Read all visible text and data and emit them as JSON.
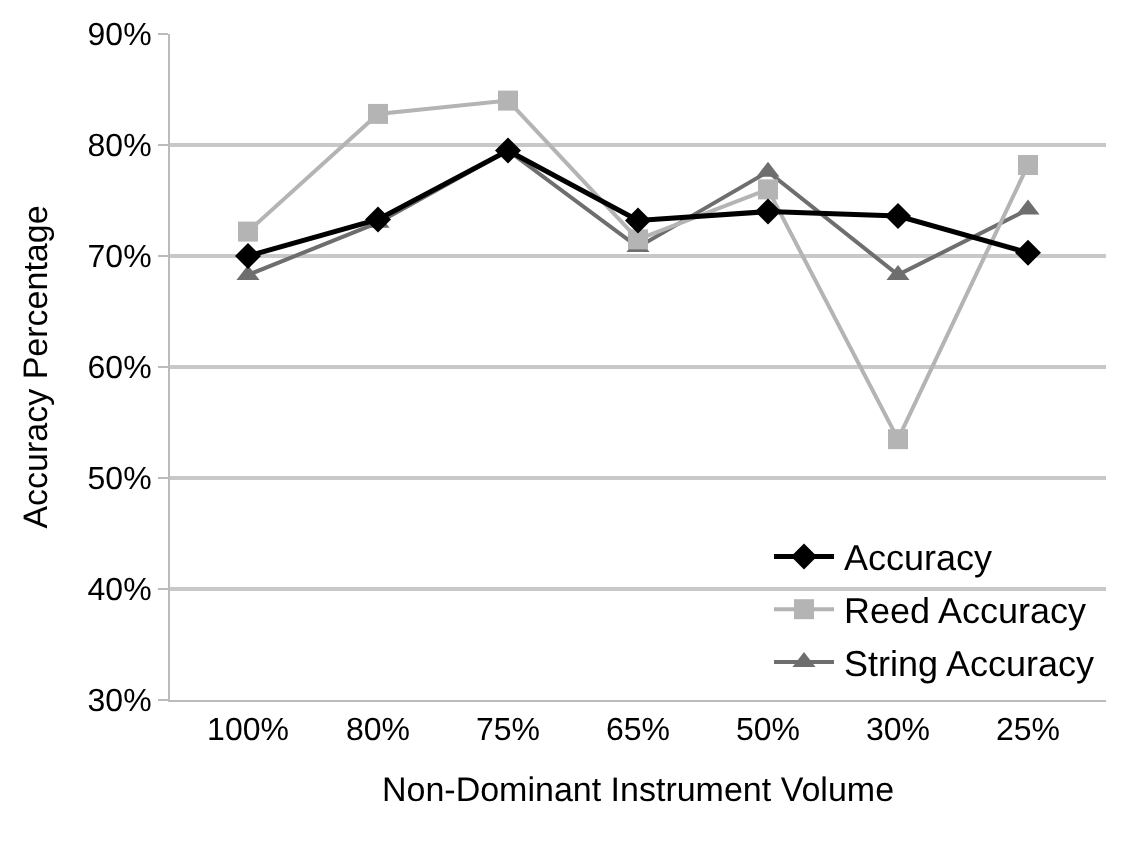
{
  "chart_data": {
    "type": "line",
    "xlabel": "Non-Dominant Instrument Volume",
    "ylabel": "Accuracy Percentage",
    "categories": [
      "100%",
      "80%",
      "75%",
      "65%",
      "50%",
      "30%",
      "25%"
    ],
    "series": [
      {
        "name": "Accuracy",
        "color": "#000000",
        "marker": "diamond",
        "values": [
          70.0,
          73.3,
          79.5,
          73.2,
          74.0,
          73.6,
          70.3
        ]
      },
      {
        "name": "Reed Accuracy",
        "color": "#b4b4b4",
        "marker": "square",
        "values": [
          72.2,
          82.8,
          84.0,
          71.5,
          76.0,
          53.5,
          78.2
        ]
      },
      {
        "name": "String Accuracy",
        "color": "#6e6e6e",
        "marker": "triangle",
        "values": [
          68.3,
          73.0,
          79.5,
          70.8,
          77.6,
          68.3,
          74.2
        ]
      }
    ],
    "ylim": [
      30,
      90
    ],
    "yticks": [
      {
        "value": 30,
        "label": "30%"
      },
      {
        "value": 40,
        "label": "40%"
      },
      {
        "value": 50,
        "label": "50%"
      },
      {
        "value": 60,
        "label": "60%"
      },
      {
        "value": 70,
        "label": "70%"
      },
      {
        "value": 80,
        "label": "80%"
      },
      {
        "value": 90,
        "label": "90%"
      }
    ],
    "grid": "y",
    "legend": "bottom right"
  }
}
